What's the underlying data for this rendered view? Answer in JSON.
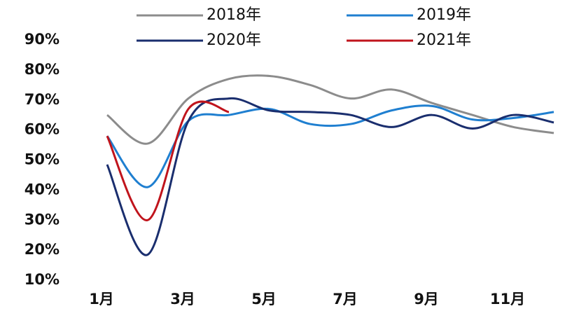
{
  "chart_data": {
    "type": "line",
    "categories": [
      "1月",
      null,
      "3月",
      null,
      "5月",
      null,
      "7月",
      null,
      "9月",
      null,
      "11月",
      null
    ],
    "series": [
      {
        "name": "2018年",
        "color": "#8c8c8c",
        "values": [
          65,
          55.5,
          70.5,
          77,
          78,
          75,
          70.5,
          73.5,
          69,
          65,
          61,
          59
        ]
      },
      {
        "name": "2019年",
        "color": "#1f7fd0",
        "values": [
          58,
          41,
          63,
          65,
          67,
          62,
          62,
          66.5,
          68,
          63.5,
          64,
          66
        ]
      },
      {
        "name": "2020年",
        "color": "#1a2e6e",
        "values": [
          48.5,
          18.5,
          63,
          70.5,
          66.5,
          66,
          65,
          61,
          65,
          60.5,
          65,
          62.5
        ]
      },
      {
        "name": "2021年",
        "color": "#c0141c",
        "values": [
          58,
          30,
          67,
          66,
          null,
          null,
          null,
          null,
          null,
          null,
          null,
          null
        ]
      }
    ],
    "ylim": [
      10,
      90
    ],
    "yticks": [
      {
        "value": 10,
        "label": "10%"
      },
      {
        "value": 20,
        "label": "20%"
      },
      {
        "value": 30,
        "label": "30%"
      },
      {
        "value": 40,
        "label": "40%"
      },
      {
        "value": 50,
        "label": "50%"
      },
      {
        "value": 60,
        "label": "60%"
      },
      {
        "value": 70,
        "label": "70%"
      },
      {
        "value": 80,
        "label": "80%"
      },
      {
        "value": 90,
        "label": "90%"
      }
    ],
    "grid": false
  }
}
